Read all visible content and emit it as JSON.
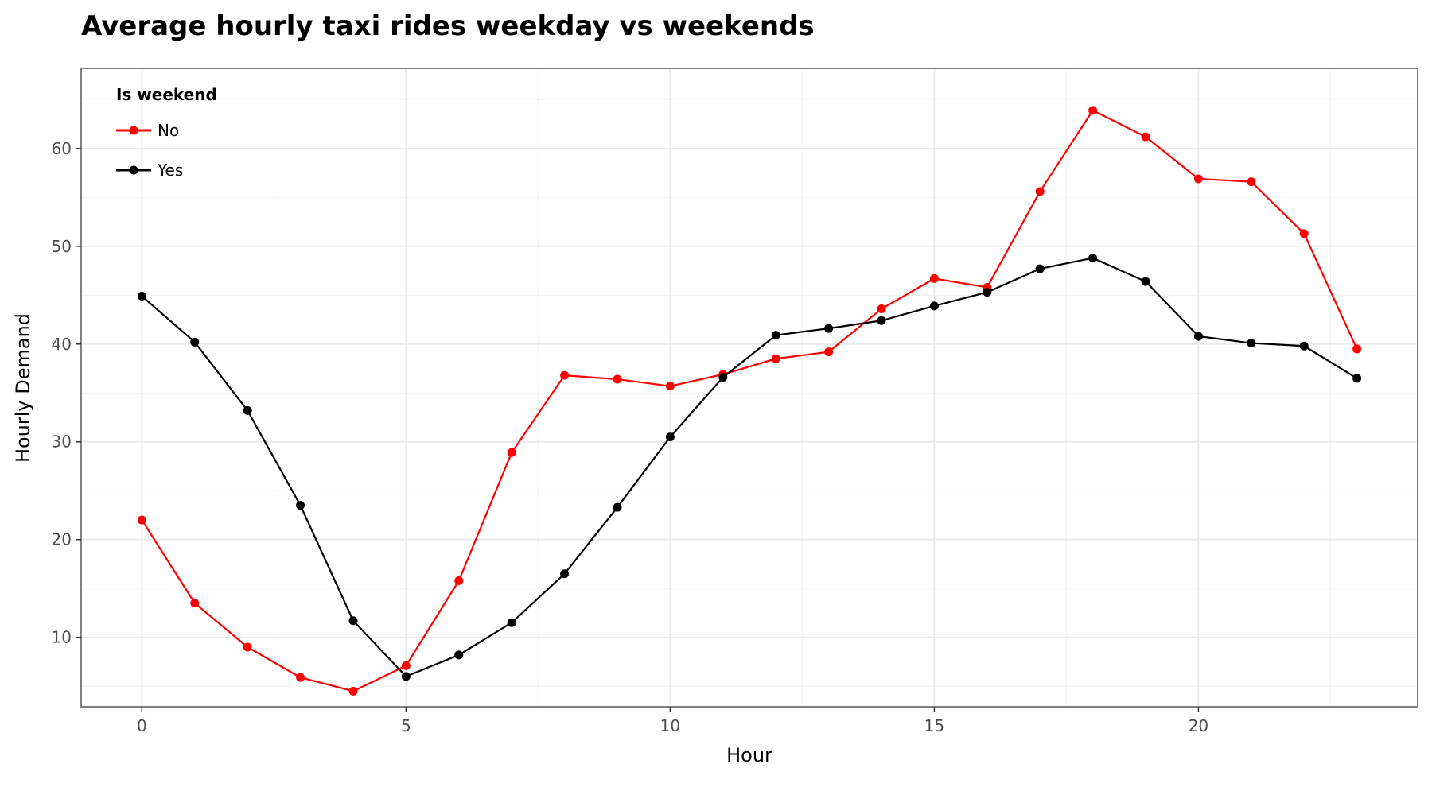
{
  "chart_data": {
    "type": "line",
    "title": "Average hourly taxi rides weekday vs weekends",
    "xlabel": "Hour",
    "ylabel": "Hourly Demand",
    "xlim": [
      -1.15,
      24.15
    ],
    "ylim": [
      2.9,
      68.2
    ],
    "xticks": [
      0,
      5,
      10,
      15,
      20
    ],
    "yticks": [
      10,
      20,
      30,
      40,
      50,
      60
    ],
    "grid": true,
    "legend": {
      "title": "Is weekend",
      "position": "top-left"
    },
    "x": [
      0,
      1,
      2,
      3,
      4,
      5,
      6,
      7,
      8,
      9,
      10,
      11,
      12,
      13,
      14,
      15,
      16,
      17,
      18,
      19,
      20,
      21,
      22,
      23
    ],
    "series": [
      {
        "name": "No",
        "color": "#ff0000",
        "values": [
          22.0,
          13.5,
          9.0,
          5.9,
          4.5,
          7.1,
          15.8,
          28.9,
          36.8,
          36.4,
          35.7,
          36.9,
          38.5,
          39.2,
          43.6,
          46.7,
          45.8,
          55.6,
          63.9,
          61.2,
          56.9,
          56.6,
          51.3,
          39.5
        ]
      },
      {
        "name": "Yes",
        "color": "#000000",
        "values": [
          44.9,
          40.2,
          33.2,
          23.5,
          11.7,
          6.0,
          8.2,
          11.5,
          16.5,
          23.3,
          30.5,
          36.6,
          40.9,
          41.6,
          42.4,
          43.9,
          45.3,
          47.7,
          48.8,
          46.4,
          40.8,
          40.1,
          39.8,
          36.5
        ]
      }
    ]
  }
}
